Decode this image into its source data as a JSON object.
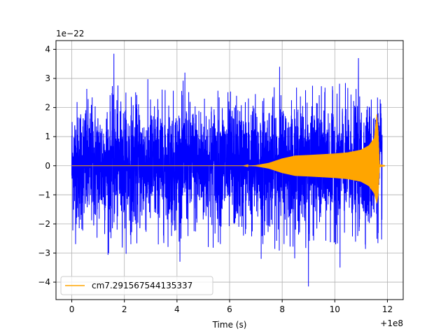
{
  "chart_data": {
    "type": "line",
    "title": "",
    "xlabel": "Time (s)",
    "ylabel": "",
    "x_offset_label": "+1e8",
    "y_scale_label": "1e−22",
    "xlim": [
      -0.6,
      12.6
    ],
    "ylim": [
      -4.6,
      4.3
    ],
    "x_ticks": [
      0,
      2,
      4,
      6,
      8,
      10,
      12
    ],
    "y_ticks": [
      -4,
      -3,
      -2,
      -1,
      0,
      1,
      2,
      3,
      4
    ],
    "x_tick_labels": [
      "0",
      "2",
      "4",
      "6",
      "8",
      "10",
      "12"
    ],
    "y_tick_labels": [
      "−4",
      "−3",
      "−2",
      "−1",
      "0",
      "1",
      "2",
      "3",
      "4"
    ],
    "grid": true,
    "legend_position": "lower-left",
    "series": [
      {
        "name": "",
        "color": "#0000ff",
        "kind": "noise",
        "x_range": [
          0,
          11.8
        ],
        "typical_amplitude": 1.8,
        "peaks": [
          {
            "x": 1.6,
            "y": 3.85
          },
          {
            "x": 9.0,
            "y": -4.15
          },
          {
            "x": 10.9,
            "y": 3.7
          },
          {
            "x": 7.9,
            "y": 3.4
          },
          {
            "x": 10.2,
            "y": -3.5
          },
          {
            "x": 4.3,
            "y": 3.2
          },
          {
            "x": 7.2,
            "y": -3.2
          },
          {
            "x": 1.4,
            "y": -3.0
          }
        ]
      },
      {
        "name": "cm7.291567544135337",
        "color": "#ffa500",
        "kind": "chirp",
        "x_range": [
          0,
          11.9
        ],
        "envelope": {
          "x": [
            0,
            6.5,
            7.0,
            7.5,
            8.0,
            8.5,
            9.0,
            10.0,
            10.5,
            11.0,
            11.3,
            11.5,
            11.6,
            11.65,
            11.7,
            11.9
          ],
          "upper": [
            0,
            0,
            0.02,
            0.1,
            0.25,
            0.35,
            0.37,
            0.42,
            0.46,
            0.55,
            0.7,
            0.95,
            1.8,
            1.2,
            0.05,
            0.02
          ],
          "lower": [
            0,
            0,
            -0.02,
            -0.1,
            -0.25,
            -0.35,
            -0.37,
            -0.42,
            -0.46,
            -0.55,
            -0.7,
            -0.95,
            -1.3,
            -1.0,
            -0.05,
            -0.02
          ]
        }
      }
    ]
  }
}
